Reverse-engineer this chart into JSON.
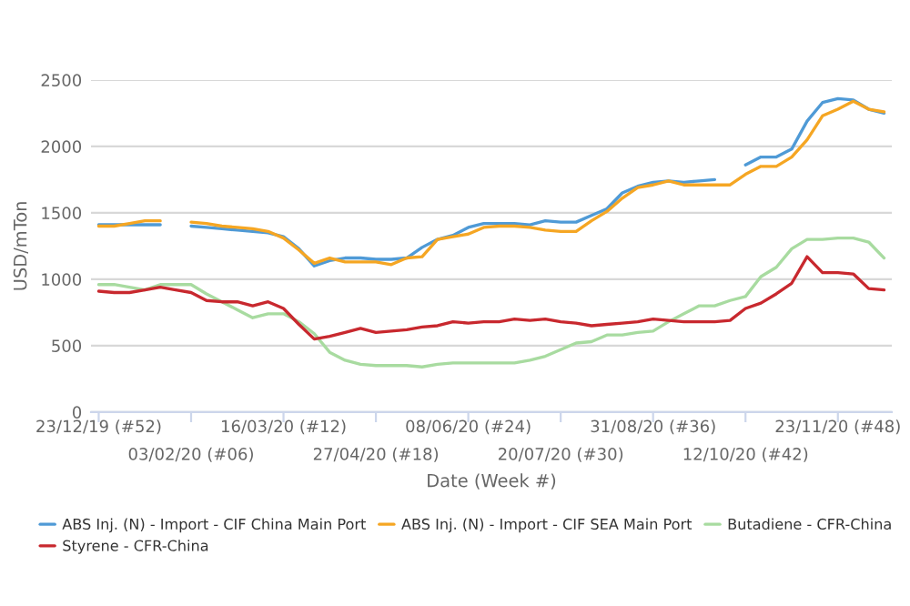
{
  "chart_data": {
    "type": "line",
    "xlabel": "Date (Week #)",
    "ylabel": "USD/mTon",
    "categories": [
      "23/12/19 (#52)",
      null,
      null,
      null,
      null,
      null,
      "03/02/20 (#06)",
      null,
      null,
      null,
      null,
      null,
      "16/03/20 (#12)",
      null,
      null,
      null,
      null,
      null,
      "27/04/20 (#18)",
      null,
      null,
      null,
      null,
      null,
      "08/06/20 (#24)",
      null,
      null,
      null,
      null,
      null,
      "20/07/20 (#30)",
      null,
      null,
      null,
      null,
      null,
      "31/08/20 (#36)",
      null,
      null,
      null,
      null,
      null,
      "12/10/20 (#42)",
      null,
      null,
      null,
      null,
      null,
      "23/11/20 (#48)",
      null,
      null,
      null
    ],
    "series": [
      {
        "name": "ABS Inj. (N) - Import - CIF China Main Port",
        "color": "#4f9ad6",
        "values": [
          1410,
          1410,
          1410,
          1410,
          1410,
          null,
          1400,
          1390,
          1380,
          1370,
          1360,
          1350,
          1320,
          1230,
          1100,
          1140,
          1160,
          1160,
          1150,
          1150,
          1160,
          1240,
          1300,
          1330,
          1390,
          1420,
          1420,
          1420,
          1410,
          1440,
          1430,
          1430,
          1480,
          1530,
          1650,
          1700,
          1730,
          1740,
          1730,
          1740,
          1750,
          null,
          1860,
          1920,
          1920,
          1980,
          2190,
          2330,
          2360,
          2350,
          2280,
          2250
        ]
      },
      {
        "name": "ABS Inj. (N) - Import - CIF SEA Main Port",
        "color": "#f5a623",
        "values": [
          1400,
          1400,
          1420,
          1440,
          1440,
          null,
          1430,
          1420,
          1400,
          1390,
          1380,
          1360,
          1310,
          1220,
          1120,
          1160,
          1130,
          1130,
          1130,
          1110,
          1160,
          1170,
          1300,
          1320,
          1340,
          1390,
          1400,
          1400,
          1390,
          1370,
          1360,
          1360,
          1440,
          1510,
          1610,
          1690,
          1710,
          1740,
          1710,
          1710,
          1710,
          1710,
          1790,
          1850,
          1850,
          1920,
          2050,
          2230,
          2280,
          2340,
          2280,
          2260
        ]
      },
      {
        "name": "Butadiene - CFR-China",
        "color": "#a8dba0",
        "values": [
          960,
          960,
          940,
          920,
          960,
          960,
          960,
          890,
          830,
          770,
          710,
          740,
          740,
          680,
          590,
          450,
          390,
          360,
          350,
          350,
          350,
          340,
          360,
          370,
          370,
          370,
          370,
          370,
          390,
          420,
          470,
          520,
          530,
          580,
          580,
          600,
          610,
          680,
          740,
          800,
          800,
          840,
          870,
          1020,
          1090,
          1230,
          1300,
          1300,
          1310,
          1310,
          1280,
          1160
        ]
      },
      {
        "name": "Styrene - CFR-China",
        "color": "#c8282e",
        "values": [
          910,
          900,
          900,
          920,
          940,
          920,
          900,
          840,
          830,
          830,
          800,
          830,
          780,
          660,
          550,
          570,
          600,
          630,
          600,
          610,
          620,
          640,
          650,
          680,
          670,
          680,
          680,
          700,
          690,
          700,
          680,
          670,
          650,
          660,
          670,
          680,
          700,
          690,
          680,
          680,
          680,
          690,
          780,
          820,
          890,
          970,
          1170,
          1050,
          1050,
          1040,
          930,
          920
        ]
      }
    ],
    "ylim": [
      0,
      2500
    ],
    "yticks": [
      0,
      500,
      1000,
      1500,
      2000,
      2500
    ],
    "grid": "y",
    "legend": "bottom",
    "marker": "none",
    "line_style": "solid"
  }
}
